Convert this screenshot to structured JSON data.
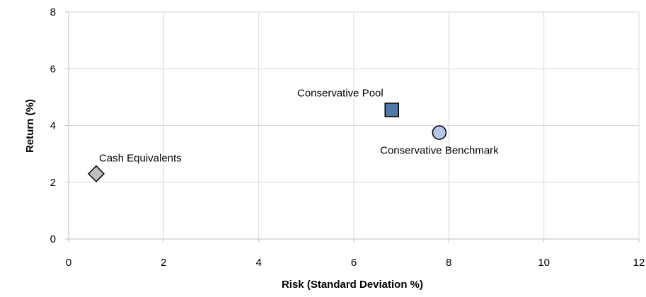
{
  "chart_data": {
    "type": "scatter",
    "title": "",
    "xlabel": "Risk (Standard Deviation %)",
    "ylabel": "Return (%)",
    "xlim": [
      0,
      12
    ],
    "ylim": [
      0,
      8
    ],
    "x_ticks": [
      0,
      2,
      4,
      6,
      8,
      10,
      12
    ],
    "y_ticks": [
      0,
      2,
      4,
      6,
      8
    ],
    "grid": true,
    "legend": "none",
    "points": [
      {
        "label": "Cash Equivalents",
        "x": 0.58,
        "y": 2.3,
        "marker": "diamond",
        "color": "#bfbfbf",
        "label_position": "above-right"
      },
      {
        "label": "Conservative Pool",
        "x": 6.8,
        "y": 4.55,
        "marker": "square",
        "color": "#4f7aa6",
        "label_position": "above-left"
      },
      {
        "label": "Conservative Benchmark",
        "x": 7.8,
        "y": 3.75,
        "marker": "circle",
        "color": "#b4c7e7",
        "label_position": "below"
      }
    ]
  }
}
